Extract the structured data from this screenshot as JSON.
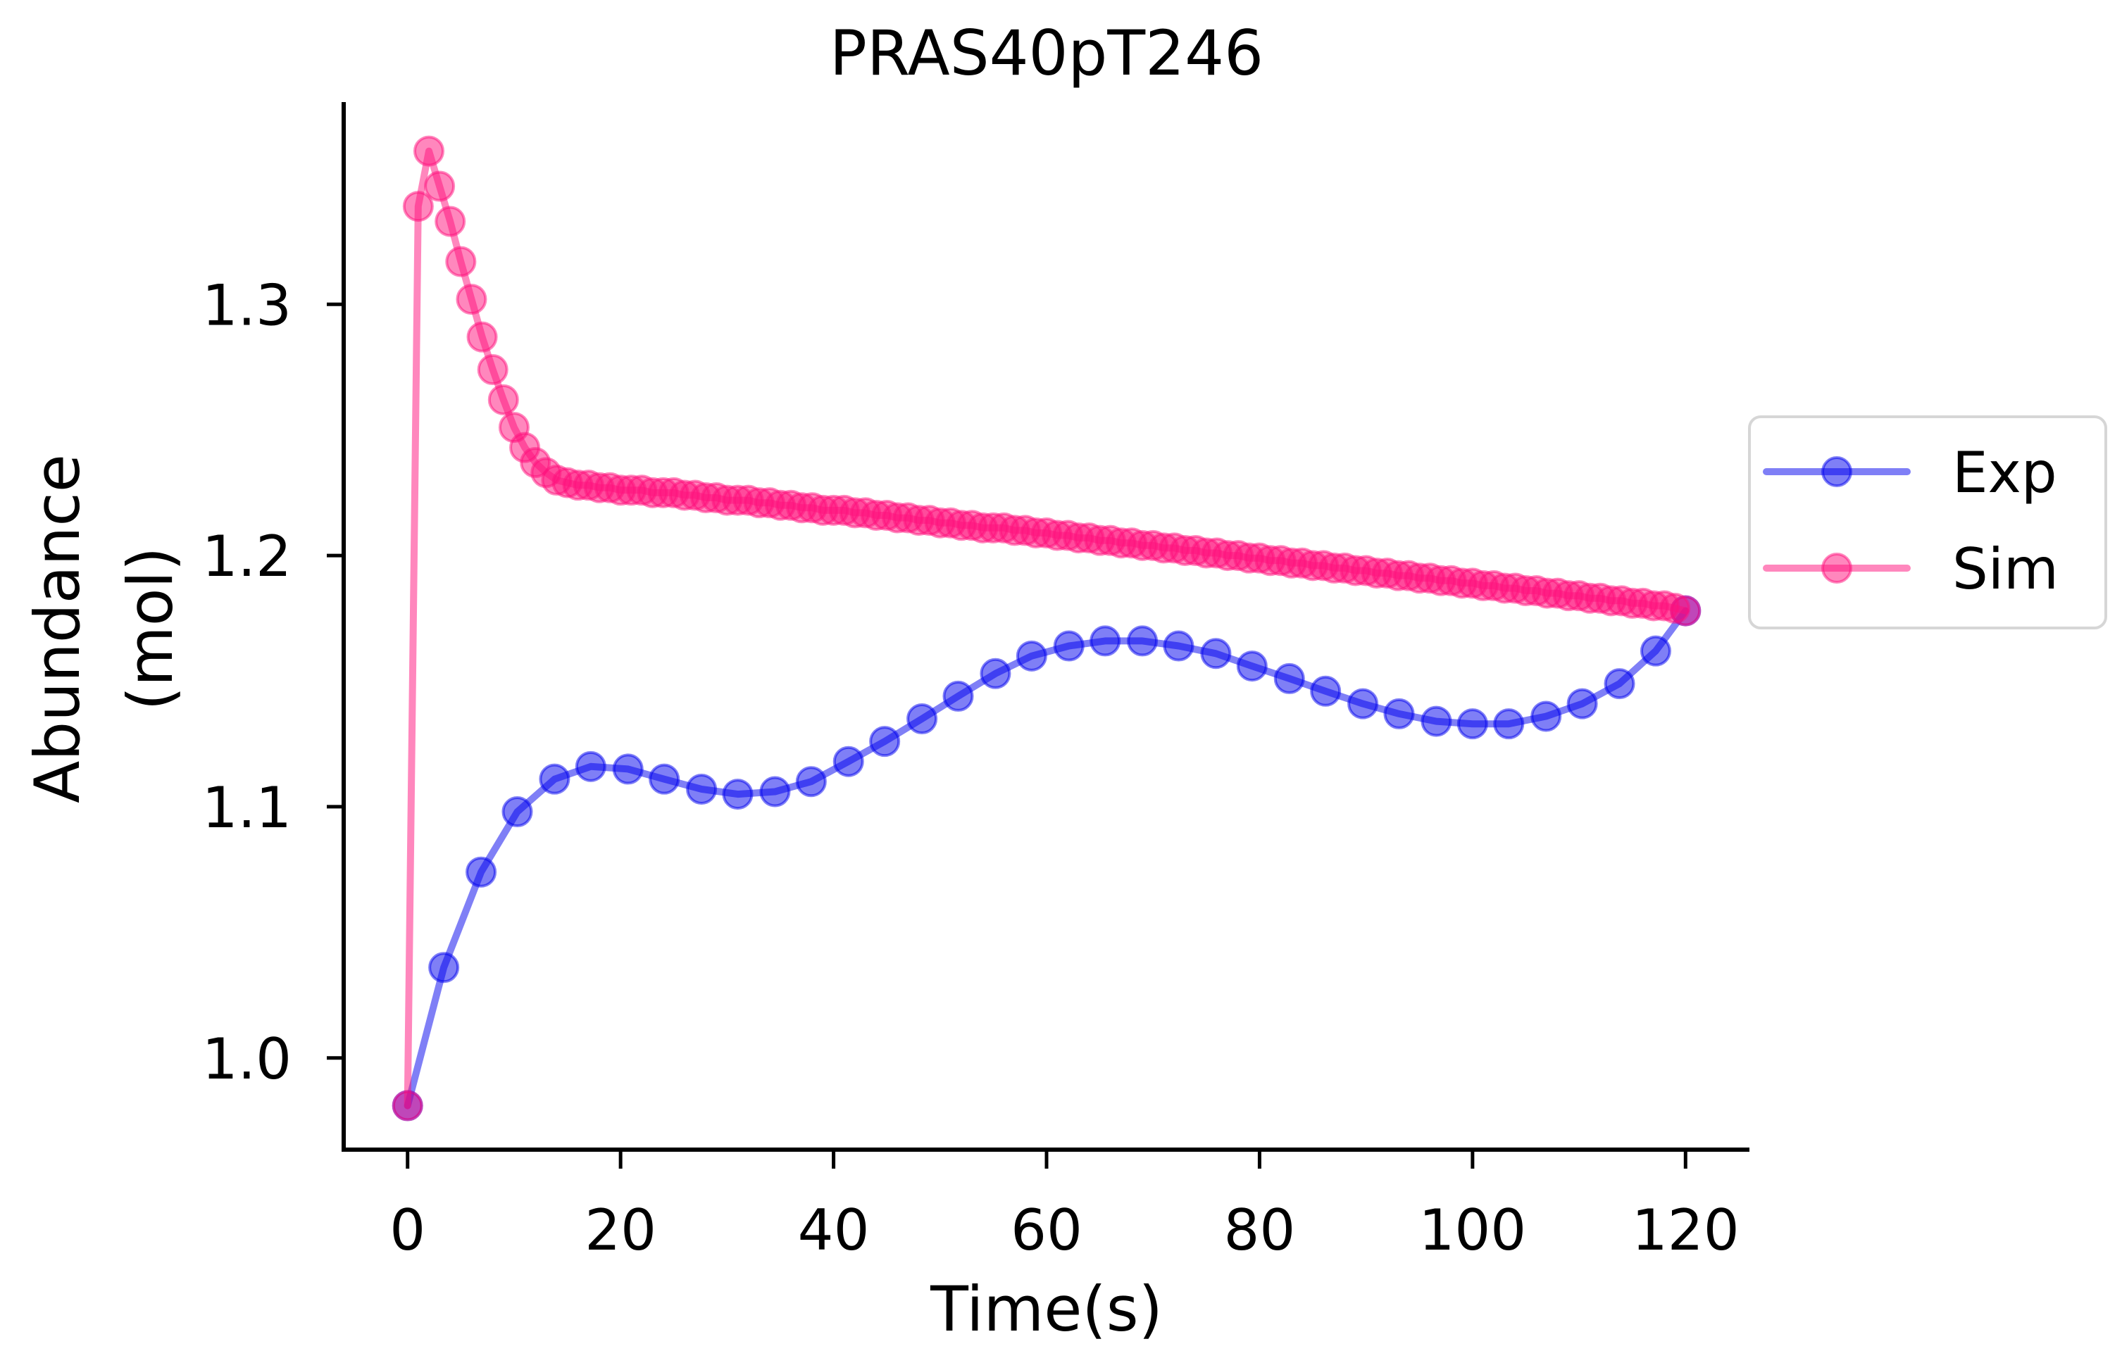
{
  "chart_data": {
    "type": "line",
    "title": "PRAS40pT246",
    "xlabel": "Time(s)",
    "ylabel": [
      "Abundance",
      "(mol)"
    ],
    "xlim": [
      -6,
      126
    ],
    "ylim": [
      0.9635,
      1.3805
    ],
    "xticks": [
      0,
      20,
      40,
      60,
      80,
      100,
      120
    ],
    "yticks": [
      1.0,
      1.1,
      1.2,
      1.3
    ],
    "grid": false,
    "legend_position": "right",
    "series": [
      {
        "name": "Exp",
        "color": "#0000ee",
        "x": [
          0.0,
          3.4,
          6.9,
          10.3,
          13.8,
          17.2,
          20.7,
          24.1,
          27.6,
          31.0,
          34.5,
          37.9,
          41.4,
          44.8,
          48.3,
          51.7,
          55.2,
          58.6,
          62.1,
          65.5,
          69.0,
          72.4,
          75.9,
          79.3,
          82.8,
          86.2,
          89.7,
          93.1,
          96.6,
          100.0,
          103.4,
          106.9,
          110.3,
          113.8,
          117.2,
          120.0
        ],
        "y": [
          0.981,
          1.036,
          1.074,
          1.098,
          1.111,
          1.116,
          1.115,
          1.111,
          1.107,
          1.105,
          1.106,
          1.11,
          1.118,
          1.126,
          1.135,
          1.144,
          1.153,
          1.16,
          1.164,
          1.166,
          1.166,
          1.164,
          1.161,
          1.156,
          1.151,
          1.146,
          1.141,
          1.137,
          1.134,
          1.133,
          1.133,
          1.136,
          1.141,
          1.149,
          1.162,
          1.178
        ]
      },
      {
        "name": "Sim",
        "color": "#ff0f7b",
        "x": [
          0,
          1,
          2,
          3,
          4,
          5,
          6,
          7,
          8,
          9,
          10,
          11,
          12,
          13,
          14,
          15,
          16,
          17,
          18,
          19,
          20,
          21,
          22,
          23,
          24,
          25,
          26,
          27,
          28,
          29,
          30,
          31,
          32,
          33,
          34,
          35,
          36,
          37,
          38,
          39,
          40,
          41,
          42,
          43,
          44,
          45,
          46,
          47,
          48,
          49,
          50,
          51,
          52,
          53,
          54,
          55,
          56,
          57,
          58,
          59,
          60,
          61,
          62,
          63,
          64,
          65,
          66,
          67,
          68,
          69,
          70,
          71,
          72,
          73,
          74,
          75,
          76,
          77,
          78,
          79,
          80,
          81,
          82,
          83,
          84,
          85,
          86,
          87,
          88,
          89,
          90,
          91,
          92,
          93,
          94,
          95,
          96,
          97,
          98,
          99,
          100,
          101,
          102,
          103,
          104,
          105,
          106,
          107,
          108,
          109,
          110,
          111,
          112,
          113,
          114,
          115,
          116,
          117,
          118,
          119,
          120
        ],
        "y": [
          0.981,
          1.339,
          1.361,
          1.347,
          1.333,
          1.317,
          1.302,
          1.287,
          1.274,
          1.262,
          1.251,
          1.243,
          1.237,
          1.233,
          1.23,
          1.229,
          1.228,
          1.228,
          1.227,
          1.227,
          1.226,
          1.226,
          1.226,
          1.225,
          1.225,
          1.225,
          1.224,
          1.224,
          1.223,
          1.223,
          1.222,
          1.222,
          1.222,
          1.221,
          1.221,
          1.22,
          1.22,
          1.219,
          1.219,
          1.218,
          1.218,
          1.218,
          1.217,
          1.217,
          1.216,
          1.216,
          1.215,
          1.215,
          1.214,
          1.214,
          1.213,
          1.213,
          1.212,
          1.212,
          1.211,
          1.211,
          1.211,
          1.21,
          1.21,
          1.209,
          1.209,
          1.208,
          1.208,
          1.207,
          1.207,
          1.206,
          1.206,
          1.205,
          1.205,
          1.204,
          1.204,
          1.203,
          1.203,
          1.202,
          1.202,
          1.201,
          1.201,
          1.2,
          1.2,
          1.199,
          1.199,
          1.198,
          1.198,
          1.197,
          1.197,
          1.196,
          1.196,
          1.195,
          1.195,
          1.194,
          1.194,
          1.193,
          1.193,
          1.192,
          1.192,
          1.191,
          1.191,
          1.19,
          1.19,
          1.189,
          1.189,
          1.188,
          1.188,
          1.187,
          1.187,
          1.186,
          1.186,
          1.185,
          1.185,
          1.184,
          1.184,
          1.183,
          1.183,
          1.182,
          1.182,
          1.181,
          1.181,
          1.18,
          1.18,
          1.179,
          1.178
        ]
      }
    ]
  }
}
